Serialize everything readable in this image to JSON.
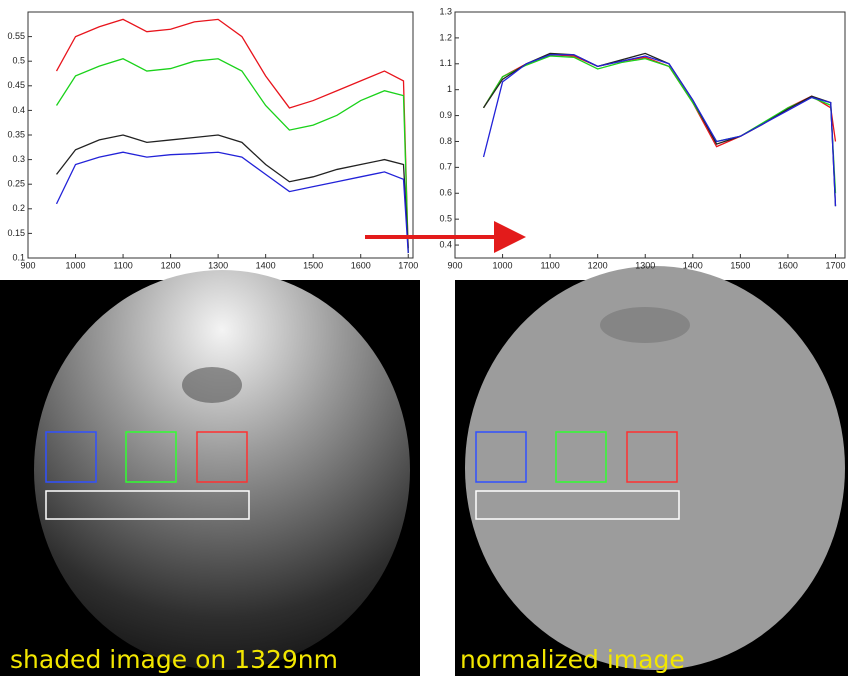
{
  "chart_data": [
    {
      "type": "line",
      "x": [
        960,
        1000,
        1050,
        1100,
        1150,
        1200,
        1250,
        1300,
        1350,
        1400,
        1450,
        1500,
        1550,
        1600,
        1650,
        1690,
        1700
      ],
      "xlim": [
        900,
        1710
      ],
      "ylim": [
        0.1,
        0.6
      ],
      "xticks": [
        900,
        1000,
        1100,
        1200,
        1300,
        1400,
        1500,
        1600,
        1700
      ],
      "yticks": [
        0.1,
        0.15,
        0.2,
        0.25,
        0.3,
        0.35,
        0.4,
        0.45,
        0.5,
        0.55
      ],
      "series": [
        {
          "color": "#e8141c",
          "values": [
            0.48,
            0.55,
            0.57,
            0.585,
            0.56,
            0.565,
            0.58,
            0.585,
            0.55,
            0.47,
            0.405,
            0.42,
            0.44,
            0.46,
            0.48,
            0.46,
            0.11
          ]
        },
        {
          "color": "#1ad21a",
          "values": [
            0.41,
            0.47,
            0.49,
            0.505,
            0.48,
            0.485,
            0.5,
            0.505,
            0.48,
            0.41,
            0.36,
            0.37,
            0.39,
            0.42,
            0.44,
            0.43,
            0.11
          ]
        },
        {
          "color": "#222222",
          "values": [
            0.27,
            0.32,
            0.34,
            0.35,
            0.335,
            0.34,
            0.345,
            0.35,
            0.335,
            0.29,
            0.255,
            0.265,
            0.28,
            0.29,
            0.3,
            0.29,
            0.12
          ]
        },
        {
          "color": "#2222d8",
          "values": [
            0.21,
            0.29,
            0.305,
            0.315,
            0.305,
            0.31,
            0.312,
            0.315,
            0.305,
            0.27,
            0.235,
            0.245,
            0.255,
            0.265,
            0.275,
            0.26,
            0.11
          ]
        }
      ]
    },
    {
      "type": "line",
      "x": [
        960,
        1000,
        1050,
        1100,
        1150,
        1200,
        1250,
        1300,
        1350,
        1400,
        1450,
        1500,
        1550,
        1600,
        1650,
        1690,
        1700
      ],
      "xlim": [
        900,
        1720
      ],
      "ylim": [
        0.35,
        1.3
      ],
      "xticks": [
        900,
        1000,
        1100,
        1200,
        1300,
        1400,
        1500,
        1600,
        1700
      ],
      "yticks": [
        0.4,
        0.5,
        0.6,
        0.7,
        0.8,
        0.9,
        1,
        1.1,
        1.2,
        1.3
      ],
      "series": [
        {
          "color": "#e8141c",
          "values": [
            0.93,
            1.05,
            1.1,
            1.135,
            1.13,
            1.09,
            1.11,
            1.125,
            1.09,
            0.95,
            0.78,
            0.82,
            0.87,
            0.93,
            0.975,
            0.93,
            0.8
          ]
        },
        {
          "color": "#1ad21a",
          "values": [
            0.93,
            1.05,
            1.095,
            1.13,
            1.125,
            1.08,
            1.105,
            1.12,
            1.09,
            0.95,
            0.8,
            0.82,
            0.875,
            0.93,
            0.97,
            0.94,
            0.6
          ]
        },
        {
          "color": "#222222",
          "values": [
            0.93,
            1.04,
            1.1,
            1.14,
            1.135,
            1.09,
            1.115,
            1.14,
            1.1,
            0.96,
            0.79,
            0.82,
            0.87,
            0.925,
            0.975,
            0.95,
            0.55
          ]
        },
        {
          "color": "#2222d8",
          "values": [
            0.74,
            1.03,
            1.1,
            1.135,
            1.135,
            1.09,
            1.11,
            1.13,
            1.1,
            0.96,
            0.8,
            0.82,
            0.87,
            0.92,
            0.97,
            0.95,
            0.55
          ]
        }
      ]
    }
  ],
  "images": [
    {
      "caption": "shaded image on 1329nm"
    },
    {
      "caption": "normalized image"
    }
  ]
}
